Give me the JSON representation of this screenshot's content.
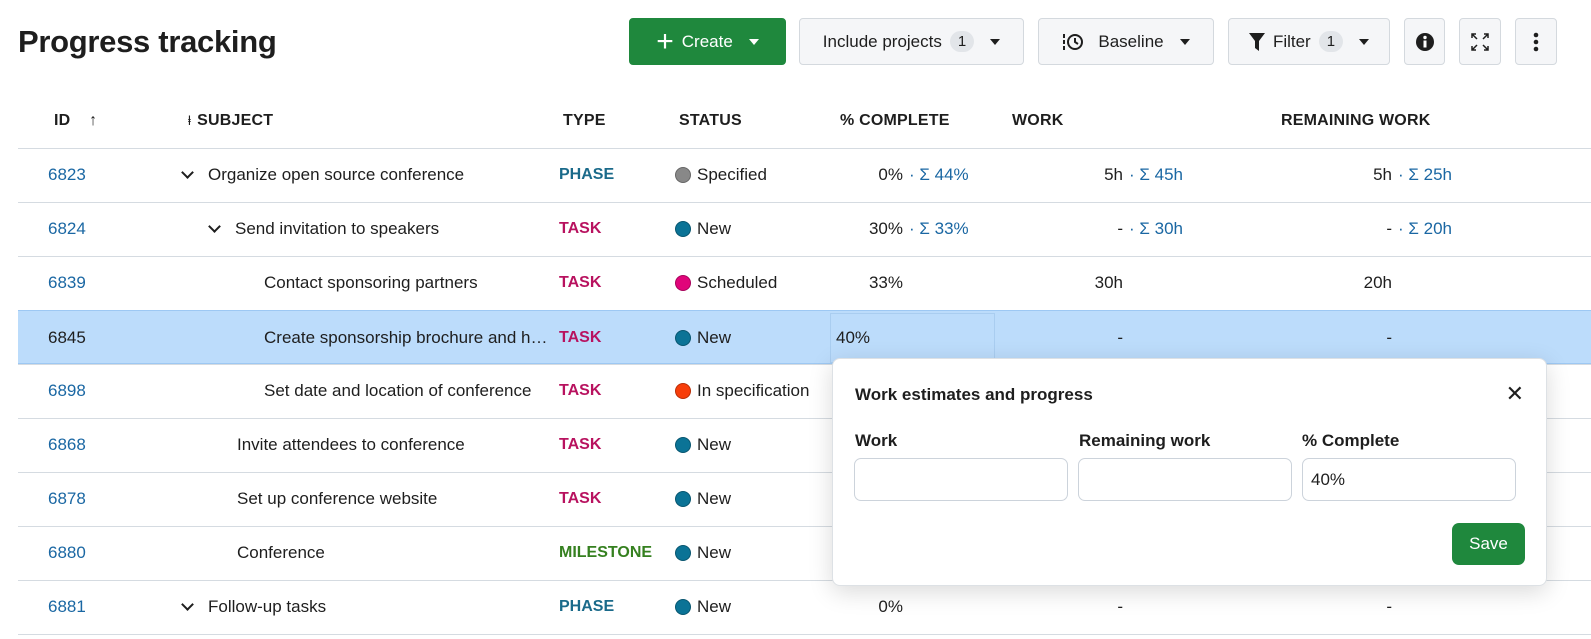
{
  "page": {
    "title": "Progress tracking"
  },
  "toolbar": {
    "create": "Create",
    "include_projects": "Include projects",
    "include_projects_count": "1",
    "baseline": "Baseline",
    "filter": "Filter",
    "filter_count": "1"
  },
  "columns": {
    "id": "ID",
    "subject": "SUBJECT",
    "type": "TYPE",
    "status": "STATUS",
    "pct": "% COMPLETE",
    "work": "WORK",
    "remaining": "REMAINING WORK"
  },
  "colors": {
    "accent": "#1f883d",
    "link": "#1a67a3",
    "phase": "#1a6a8a",
    "task": "#b8125f",
    "milestone": "#35801f",
    "selected_row": "#bcdcfb"
  },
  "rows": [
    {
      "id": "6823",
      "subject": "Organize open source conference",
      "level": 0,
      "expanded": true,
      "type": "PHASE",
      "status": "Specified",
      "status_color": "#888888",
      "pct": "0%",
      "pct_sum": "· Σ 44%",
      "work": "5h",
      "work_sum": "· Σ 45h",
      "rem": "5h",
      "rem_sum": "· Σ 25h"
    },
    {
      "id": "6824",
      "subject": "Send invitation to speakers",
      "level": 1,
      "expanded": true,
      "type": "TASK",
      "status": "New",
      "status_color": "#0b7396",
      "pct": "30%",
      "pct_sum": "· Σ 33%",
      "work": "-",
      "work_sum": "· Σ 30h",
      "rem": "-",
      "rem_sum": "· Σ 20h"
    },
    {
      "id": "6839",
      "subject": "Contact sponsoring partners",
      "level": 2,
      "type": "TASK",
      "status": "Scheduled",
      "status_color": "#e0047a",
      "pct": "33%",
      "work": "30h",
      "rem": "20h"
    },
    {
      "id": "6845",
      "subject": "Create sponsorship brochure and hand-outs",
      "level": 2,
      "type": "TASK",
      "status": "New",
      "status_color": "#0b7396",
      "pct": "40%",
      "work": "-",
      "rem": "-",
      "selected": true
    },
    {
      "id": "6898",
      "subject": "Set date and location of conference",
      "level": 2,
      "type": "TASK",
      "status": "In specification",
      "status_color": "#f73e0a"
    },
    {
      "id": "6868",
      "subject": "Invite attendees to conference",
      "level": 1,
      "type": "TASK",
      "status": "New",
      "status_color": "#0b7396"
    },
    {
      "id": "6878",
      "subject": "Set up conference website",
      "level": 1,
      "type": "TASK",
      "status": "New",
      "status_color": "#0b7396"
    },
    {
      "id": "6880",
      "subject": "Conference",
      "level": 1,
      "type": "MILESTONE",
      "status": "New",
      "status_color": "#0b7396"
    },
    {
      "id": "6881",
      "subject": "Follow-up tasks",
      "level": 0,
      "expanded": true,
      "type": "PHASE",
      "status": "New",
      "status_color": "#0b7396",
      "pct": "0%",
      "work": "-",
      "rem": "-"
    }
  ],
  "popover": {
    "title": "Work estimates and progress",
    "work_label": "Work",
    "work_value": "",
    "remaining_label": "Remaining work",
    "remaining_value": "",
    "pct_label": "% Complete",
    "pct_value": "40%",
    "save": "Save"
  }
}
